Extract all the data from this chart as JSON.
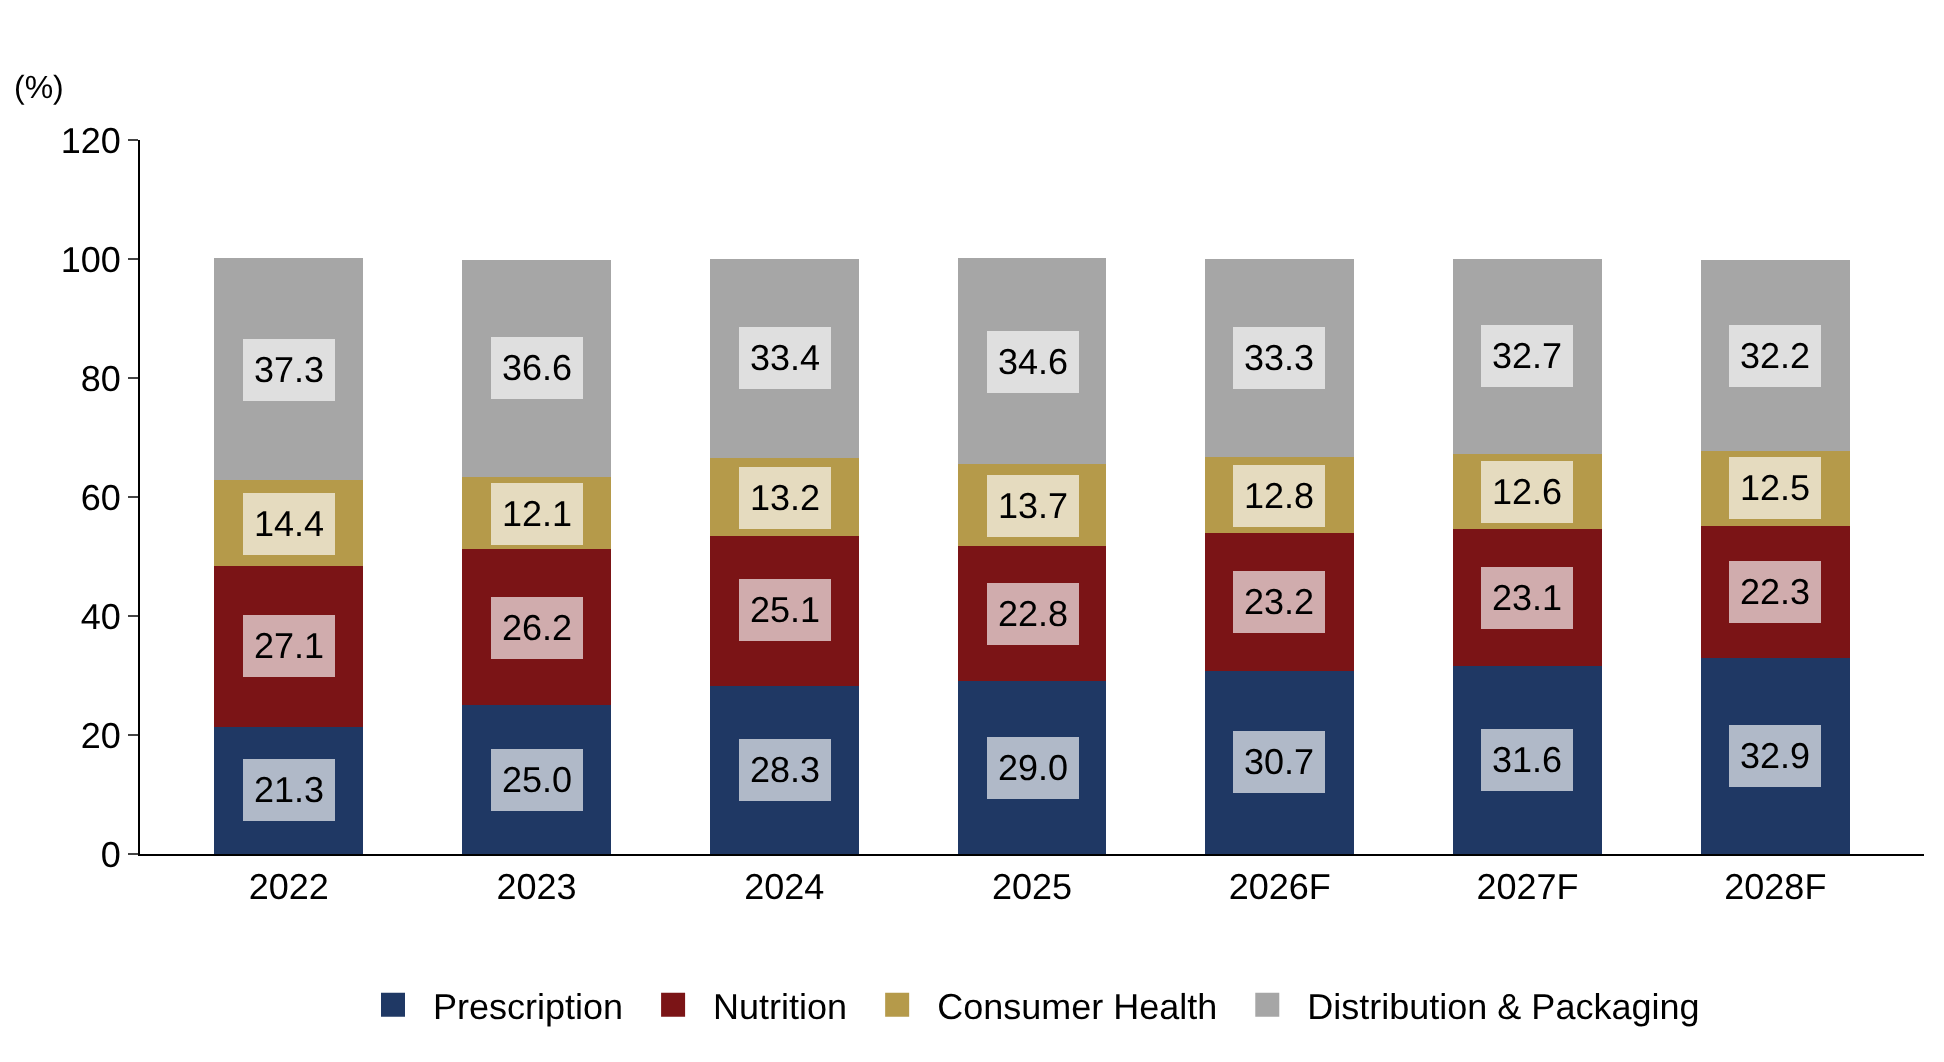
{
  "chart_data": {
    "type": "bar",
    "stacked": true,
    "ylabel": "(%)",
    "categories": [
      "2022",
      "2023",
      "2024",
      "2025",
      "2026F",
      "2027F",
      "2028F"
    ],
    "series": [
      {
        "name": "Prescription",
        "color": "#1f3864",
        "values": [
          21.3,
          25.0,
          28.3,
          29.0,
          30.7,
          31.6,
          32.9
        ],
        "value_labels": [
          "21.3",
          "25.0",
          "28.3",
          "29.0",
          "30.7",
          "31.6",
          "32.9"
        ]
      },
      {
        "name": "Nutrition",
        "color": "#7b1416",
        "values": [
          27.1,
          26.2,
          25.1,
          22.8,
          23.2,
          23.1,
          22.3
        ],
        "value_labels": [
          "27.1",
          "26.2",
          "25.1",
          "22.8",
          "23.2",
          "23.1",
          "22.3"
        ]
      },
      {
        "name": "Consumer Health",
        "color": "#b59a4a",
        "values": [
          14.4,
          12.1,
          13.2,
          13.7,
          12.8,
          12.6,
          12.5
        ],
        "value_labels": [
          "14.4",
          "12.1",
          "13.2",
          "13.7",
          "12.8",
          "12.6",
          "12.5"
        ]
      },
      {
        "name": "Distribution & Packaging",
        "color": "#a6a6a6",
        "values": [
          37.3,
          36.6,
          33.4,
          34.6,
          33.3,
          32.7,
          32.2
        ],
        "value_labels": [
          "37.3",
          "36.6",
          "33.4",
          "34.6",
          "33.3",
          "32.7",
          "32.2"
        ]
      }
    ],
    "ylim": [
      0,
      120
    ],
    "yticks": [
      0,
      20,
      40,
      60,
      80,
      100,
      120
    ],
    "legend": "bottom"
  }
}
